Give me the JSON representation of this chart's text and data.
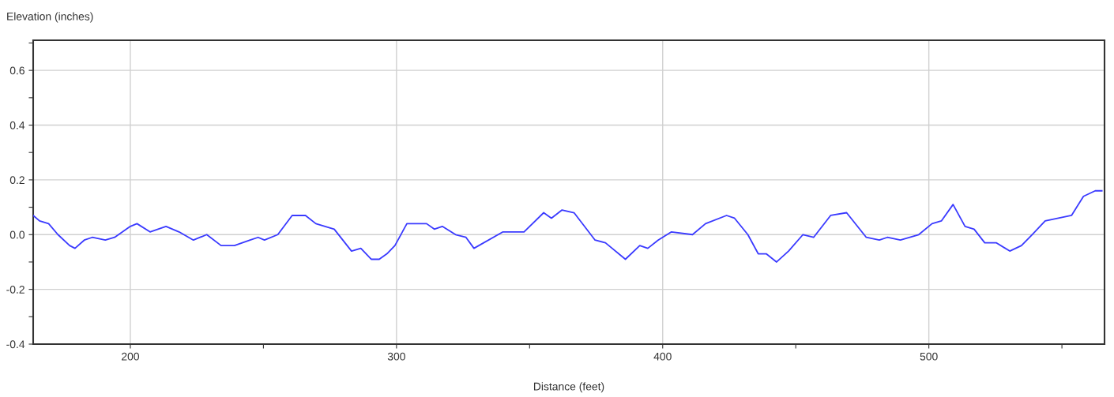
{
  "chart_data": {
    "type": "line",
    "xlabel": "Distance (feet)",
    "ylabel": "Elevation (inches)",
    "x": [
      163.5,
      165.9,
      169.3,
      172.8,
      177.2,
      179.2,
      182.7,
      185.7,
      190.6,
      194.1,
      200,
      202.5,
      207.4,
      213.4,
      218.3,
      223.7,
      228.7,
      234.1,
      239.1,
      245.0,
      248.0,
      250.4,
      255.4,
      260.8,
      265.8,
      269.7,
      276.6,
      283.1,
      286.6,
      290.5,
      293.5,
      296.4,
      299.4,
      303.9,
      311.3,
      314.2,
      317.2,
      322.2,
      326.1,
      329.1,
      340.0,
      347.9,
      355.3,
      358.2,
      362.2,
      366.7,
      374.6,
      378.5,
      386.0,
      391.4,
      394.4,
      398.3,
      403.3,
      411.2,
      416.1,
      424.0,
      427.0,
      432.0,
      435.9,
      438.9,
      442.8,
      447.3,
      452.7,
      456.7,
      463.1,
      469.1,
      476.5,
      481.4,
      484.4,
      489.3,
      496.2,
      501.2,
      504.7,
      509.1,
      513.6,
      517.0,
      521.0,
      525.4,
      530.4,
      534.8,
      538.8,
      543.7,
      553.6,
      558.1,
      562.5,
      565.0
    ],
    "series": [
      {
        "color": "#3a3aff",
        "values": [
          0.07,
          0.05,
          0.04,
          0.0,
          -0.04,
          -0.05,
          -0.02,
          -0.01,
          -0.02,
          -0.01,
          0.03,
          0.04,
          0.01,
          0.03,
          0.01,
          -0.02,
          0.0,
          -0.04,
          -0.04,
          -0.02,
          -0.01,
          -0.02,
          0.0,
          0.07,
          0.07,
          0.04,
          0.02,
          -0.06,
          -0.05,
          -0.09,
          -0.09,
          -0.07,
          -0.04,
          0.04,
          0.04,
          0.02,
          0.03,
          0.0,
          -0.01,
          -0.05,
          0.01,
          0.01,
          0.08,
          0.06,
          0.09,
          0.08,
          -0.02,
          -0.03,
          -0.09,
          -0.04,
          -0.05,
          -0.02,
          0.01,
          0.0,
          0.04,
          0.07,
          0.06,
          0.0,
          -0.07,
          -0.07,
          -0.1,
          -0.06,
          0.0,
          -0.01,
          0.07,
          0.08,
          -0.01,
          -0.02,
          -0.01,
          -0.02,
          0.0,
          0.04,
          0.05,
          0.11,
          0.03,
          0.02,
          -0.03,
          -0.03,
          -0.06,
          -0.04,
          0.0,
          0.05,
          0.07,
          0.14,
          0.16,
          0.16
        ]
      }
    ],
    "xlim": [
      163.5,
      566
    ],
    "ylim": [
      -0.4,
      0.71
    ],
    "xticks": [
      200,
      {
        "value": 250,
        "label": null
      },
      300,
      {
        "value": 350,
        "label": null
      },
      400,
      {
        "value": 450,
        "label": null
      },
      500,
      {
        "value": 550,
        "label": null
      }
    ],
    "yticks": [
      -0.4,
      {
        "value": -0.3,
        "label": null
      },
      -0.2,
      {
        "value": -0.1,
        "label": null
      },
      {
        "value": 0,
        "label": "0.0"
      },
      {
        "value": 0.1,
        "label": null
      },
      0.2,
      {
        "value": 0.3,
        "label": null
      },
      0.4,
      {
        "value": 0.5,
        "label": null
      },
      0.6,
      {
        "value": 0.7,
        "label": null
      }
    ],
    "grid": true,
    "marker": "none",
    "line_style": "solid"
  }
}
